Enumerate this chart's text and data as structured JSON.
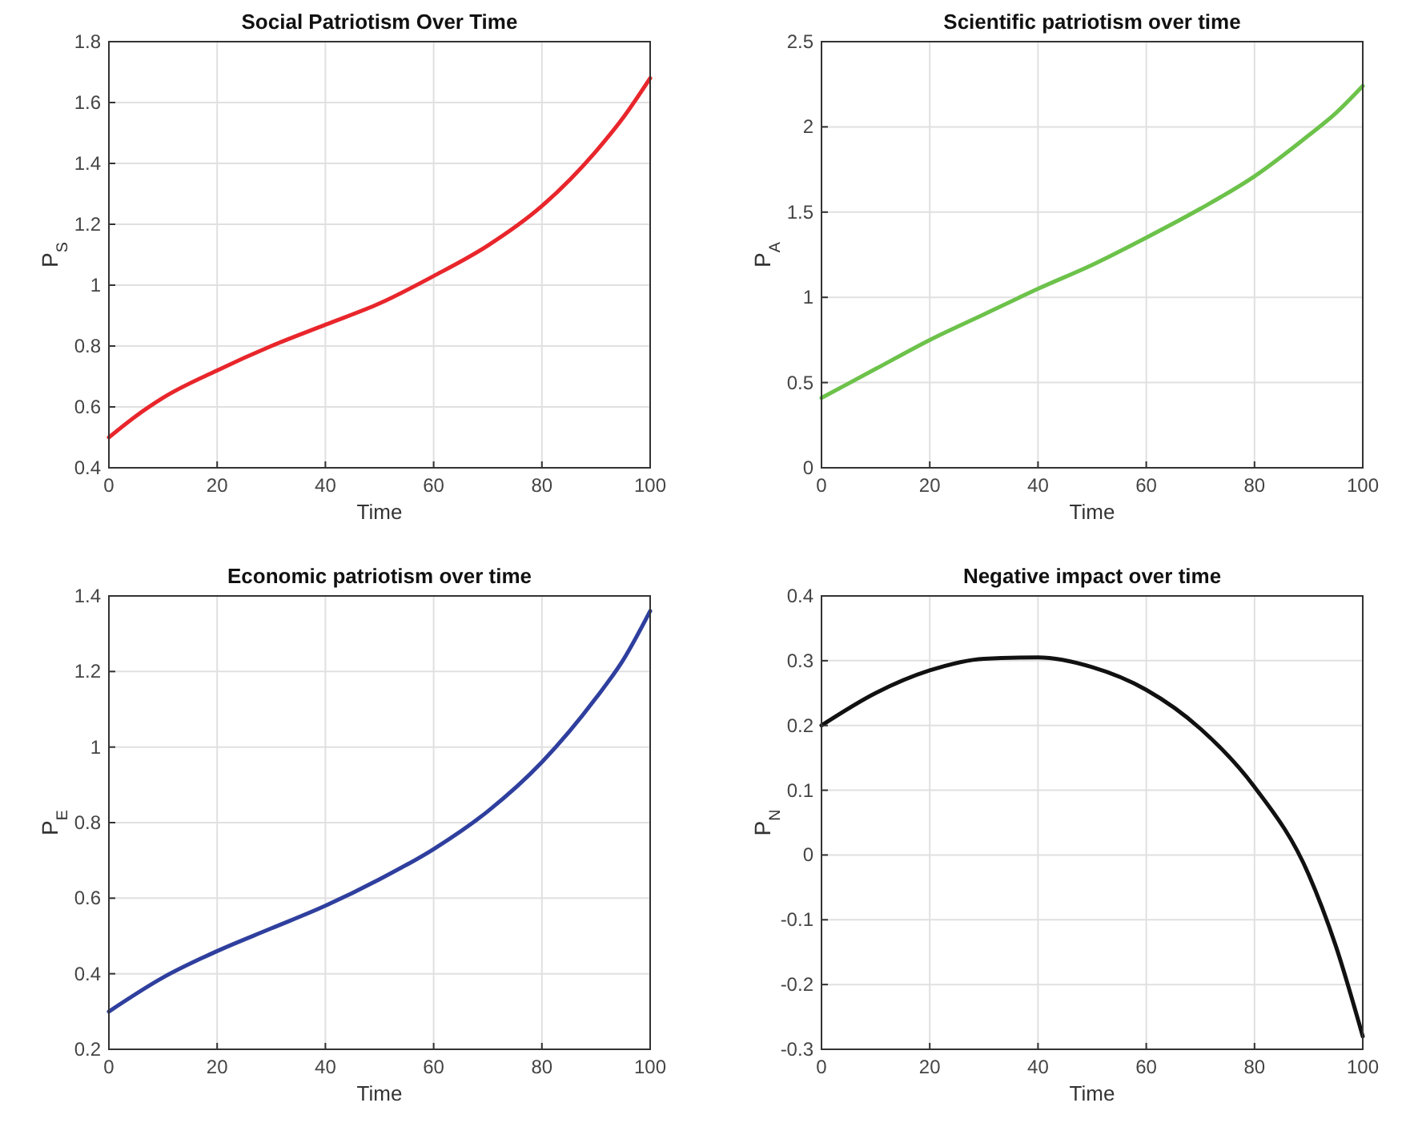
{
  "chart_data": [
    {
      "type": "line",
      "title": "Social Patriotism Over Time",
      "xlabel": "Time",
      "ylabel": "P$_{S}$",
      "x": [
        0,
        5,
        10,
        20,
        30,
        40,
        50,
        60,
        70,
        80,
        90,
        95,
        100
      ],
      "series": [
        {
          "color": "#e8262b",
          "values": [
            0.5,
            0.57,
            0.63,
            0.72,
            0.8,
            0.87,
            0.94,
            1.03,
            1.13,
            1.26,
            1.44,
            1.55,
            1.68
          ]
        }
      ],
      "xlim": [
        0,
        100
      ],
      "xticks": [
        0,
        20,
        40,
        60,
        80,
        100
      ],
      "ylim": [
        0.4,
        1.8
      ],
      "yticks": [
        0.4,
        0.6,
        0.8,
        1,
        1.2,
        1.4,
        1.6,
        1.8
      ],
      "grid": true
    },
    {
      "type": "line",
      "title": "Scientific patriotism over time",
      "xlabel": "Time",
      "ylabel": "P$_{A}$",
      "x": [
        0,
        10,
        20,
        30,
        40,
        50,
        60,
        70,
        80,
        90,
        95,
        100
      ],
      "series": [
        {
          "color": "#6cc24a",
          "values": [
            0.41,
            0.58,
            0.75,
            0.9,
            1.05,
            1.19,
            1.35,
            1.52,
            1.71,
            1.95,
            2.08,
            2.24
          ]
        }
      ],
      "xlim": [
        0,
        100
      ],
      "xticks": [
        0,
        20,
        40,
        60,
        80,
        100
      ],
      "ylim": [
        0,
        2.5
      ],
      "yticks": [
        0,
        0.5,
        1,
        1.5,
        2,
        2.5
      ],
      "grid": true
    },
    {
      "type": "line",
      "title": "Economic patriotism over time",
      "xlabel": "Time",
      "ylabel": "P$_{E}$",
      "x": [
        0,
        10,
        20,
        30,
        40,
        50,
        60,
        70,
        80,
        90,
        95,
        100
      ],
      "series": [
        {
          "color": "#2f3f9e",
          "values": [
            0.3,
            0.39,
            0.46,
            0.52,
            0.58,
            0.65,
            0.73,
            0.83,
            0.96,
            1.13,
            1.23,
            1.36
          ]
        }
      ],
      "xlim": [
        0,
        100
      ],
      "xticks": [
        0,
        20,
        40,
        60,
        80,
        100
      ],
      "ylim": [
        0.2,
        1.4
      ],
      "yticks": [
        0.2,
        0.4,
        0.6,
        0.8,
        1,
        1.2,
        1.4
      ],
      "grid": true
    },
    {
      "type": "line",
      "title": "Negative impact over time",
      "xlabel": "Time",
      "ylabel": "P$_{N}$",
      "x": [
        0,
        10,
        20,
        30,
        40,
        50,
        60,
        70,
        80,
        90,
        95,
        100
      ],
      "series": [
        {
          "color": "#111111",
          "values": [
            0.2,
            0.25,
            0.285,
            0.303,
            0.305,
            0.29,
            0.255,
            0.195,
            0.105,
            -0.03,
            -0.14,
            -0.28
          ]
        }
      ],
      "xlim": [
        0,
        100
      ],
      "xticks": [
        0,
        20,
        40,
        60,
        80,
        100
      ],
      "ylim": [
        -0.3,
        0.4
      ],
      "yticks": [
        -0.3,
        -0.2,
        -0.1,
        0,
        0.1,
        0.2,
        0.3,
        0.4
      ],
      "grid": true
    }
  ]
}
